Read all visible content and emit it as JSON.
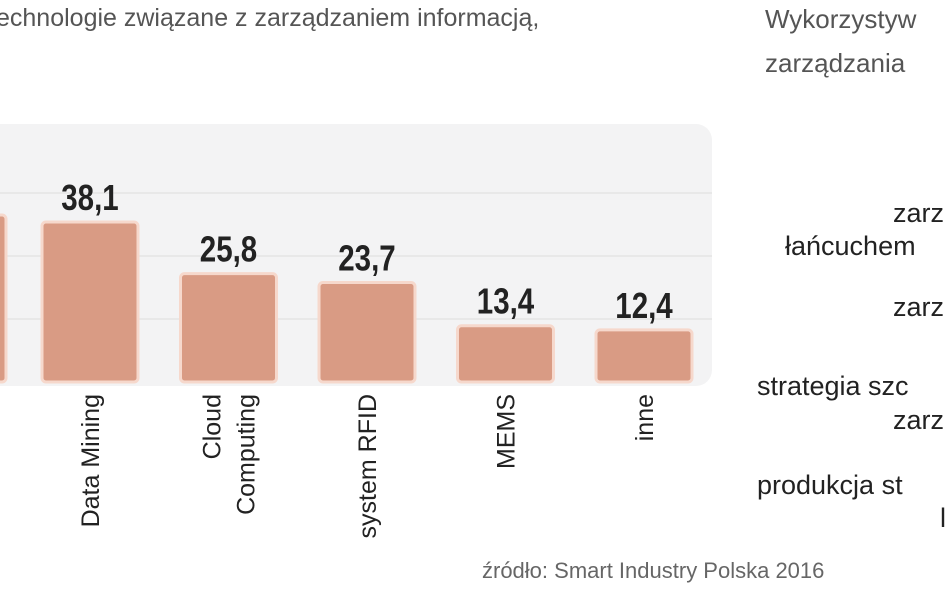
{
  "left_title": "echnologie związane z zarządzaniem informacją,",
  "right_title": [
    "Wykorzystyw",
    "zarządzania"
  ],
  "right_labels": [
    "zarz",
    "łańcuchem",
    "zarz",
    "strategia szc",
    "zarz",
    "produkcja st",
    "l"
  ],
  "source": "źródło: Smart Industry Polska 2016",
  "colors": {
    "bar": "#d99b84",
    "bar_border": "#f6d8cc",
    "panel": "#f3f3f4",
    "grid": "#dcdcdc"
  },
  "chart_data": {
    "type": "bar",
    "categories": [
      [
        "Data Mining"
      ],
      [
        "Cloud",
        "Computing"
      ],
      [
        "system RFID"
      ],
      [
        "MEMS"
      ],
      [
        "inne"
      ]
    ],
    "values": [
      38.1,
      25.8,
      23.7,
      13.4,
      12.4
    ],
    "value_labels": [
      "38,1",
      "25,8",
      "23,7",
      "13,4",
      "12,4"
    ],
    "ylim": [
      0,
      45
    ],
    "grid": true,
    "yticks_shown": false
  }
}
